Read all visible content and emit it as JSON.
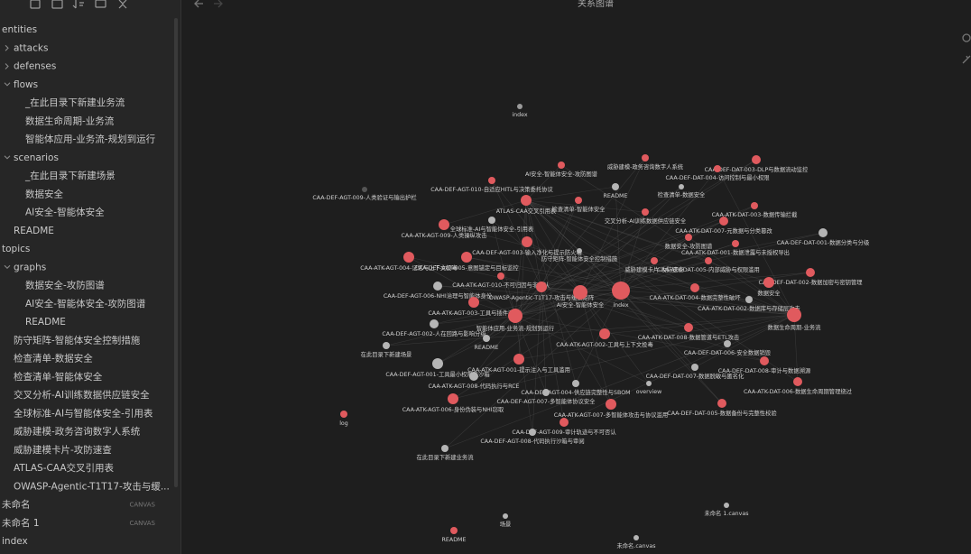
{
  "header": {
    "title": "关系图谱"
  },
  "sidebar": {
    "items": [
      {
        "label": "entities"
      },
      {
        "label": "attacks"
      },
      {
        "label": "defenses"
      },
      {
        "label": "flows"
      },
      {
        "label": "_在此目录下新建业务流"
      },
      {
        "label": "数据生命周期-业务流"
      },
      {
        "label": "智能体应用-业务流-规划到运行"
      },
      {
        "label": "scenarios"
      },
      {
        "label": "_在此目录下新建场景"
      },
      {
        "label": "数据安全"
      },
      {
        "label": "AI安全-智能体安全"
      },
      {
        "label": "README"
      },
      {
        "label": "topics"
      },
      {
        "label": "graphs"
      },
      {
        "label": "数据安全-攻防图谱"
      },
      {
        "label": "AI安全-智能体安全-攻防图谱"
      },
      {
        "label": "README"
      },
      {
        "label": "防守矩阵-智能体安全控制措施"
      },
      {
        "label": "检查清单-数据安全"
      },
      {
        "label": "检查清单-智能体安全"
      },
      {
        "label": "交叉分析-AI训练数据供应链安全"
      },
      {
        "label": "全球标准-AI与智能体安全-引用表"
      },
      {
        "label": "威胁建模-政务咨询数字人系统"
      },
      {
        "label": "威胁建模卡片-攻防速查"
      },
      {
        "label": "ATLAS-CAA交叉引用表"
      },
      {
        "label": "OWASP-Agentic-T1T17-攻击与缓..."
      },
      {
        "label": "未命名",
        "badge": "CANVAS"
      },
      {
        "label": "未命名 1",
        "badge": "CANVAS"
      },
      {
        "label": "index"
      }
    ]
  },
  "graph": {
    "nodes": [
      {
        "label": "index",
        "color": "#9a9a9a"
      },
      {
        "label": "威胁建模-政务咨询数字人系统",
        "color": "#e05a5e"
      },
      {
        "label": "AI安全-智能体安全-攻防图谱",
        "color": "#e05a5e"
      },
      {
        "label": "CAA-DEF-DAT-003-DLP与数据流动监控",
        "color": "#e05a5e"
      },
      {
        "label": "CAA-DEF-DAT-004-访问控制与最小权限",
        "color": "#e05a5e"
      },
      {
        "label": "CAA-DEF-AGT-010-自适应HITL与决策委托协议",
        "color": "#e05a5e"
      },
      {
        "label": "README",
        "color": "#b5b5b5"
      },
      {
        "label": "检查清单-数据安全",
        "color": "#b5b5b5"
      },
      {
        "label": "CAA-DEF-AGT-009-人类验证与输出护栏",
        "color": "#555555"
      },
      {
        "label": "检查清单-智能体安全",
        "color": "#e05a5e"
      },
      {
        "label": "ATLAS-CAA交叉引用表",
        "color": "#e05a5e"
      },
      {
        "label": "CAA-ATK-DAT-003-数据传输拦截",
        "color": "#e05a5e"
      },
      {
        "label": "交叉分析-AI训练数据供应链安全",
        "color": "#e05a5e"
      },
      {
        "label": "全球标准-AI与智能体安全-引用表",
        "color": "#b5b5b5"
      },
      {
        "label": "CAA-ATK-AGT-009-人类操纵攻击",
        "color": "#e05a5e"
      },
      {
        "label": "CAA-ATK-DAT-007-元数据与分类篡改",
        "color": "#e05a5e"
      },
      {
        "label": "数据安全-攻防图谱",
        "color": "#e05a5e"
      },
      {
        "label": "CAA-DEF-DAT-001-数据分类与分级",
        "color": "#b5b5b5"
      },
      {
        "label": "CAA-DEF-AGT-003-输入净化与提示防火墙",
        "color": "#e05a5e"
      },
      {
        "label": "CAA-ATK-DAT-001-数据泄露与未授权导出",
        "color": "#e05a5e"
      },
      {
        "label": "防守矩阵-智能体安全控制措施",
        "color": "#b5b5b5"
      },
      {
        "label": "CAA-ATK-AGT-004-记忆与上下文投毒",
        "color": "#e05a5e"
      },
      {
        "label": "CAA-DEF-AGT-005-意图锚定与目标监控",
        "color": "#e05a5e"
      },
      {
        "label": "威胁建模卡片-攻防速查",
        "color": "#e05a5e"
      },
      {
        "label": "CAA-ATK-DAT-005-内部威胁与权限滥用",
        "color": "#e05a5e"
      },
      {
        "label": "CAA-DEF-DAT-002-数据加密与密钥管理",
        "color": "#e05a5e"
      },
      {
        "label": "数据安全",
        "color": "#e05a5e"
      },
      {
        "label": "CAA-ATK-AGT-010-不可归因与非否认",
        "color": "#e05a5e"
      },
      {
        "label": "CAA-DEF-AGT-006-NHI治理与智能体身份",
        "color": "#b5b5b5"
      },
      {
        "label": "OWASP-Agentic-T1T17-攻击与缓解矩阵",
        "color": "#e05a5e"
      },
      {
        "label": "index",
        "color": "#e05a5e"
      },
      {
        "label": "AI安全-智能体安全",
        "color": "#e05a5e"
      },
      {
        "label": "CAA-ATK-DAT-004-数据完整性破坏",
        "color": "#e05a5e"
      },
      {
        "label": "CAA-ATK-AGT-003-工具与插件滥用",
        "color": "#e05a5e"
      },
      {
        "label": "CAA-ATK-DAT-002-数据库与存储层攻击",
        "color": "#b5b5b5"
      },
      {
        "label": "数据生命周期-业务流",
        "color": "#e05a5e"
      },
      {
        "label": "智能体应用-业务流-规划到运行",
        "color": "#e05a5e"
      },
      {
        "label": "CAA-DEF-AGT-002-人在回路与影响分级",
        "color": "#b5b5b5"
      },
      {
        "label": "CAA-ATK-AGT-002-工具与上下文投毒",
        "color": "#e05a5e"
      },
      {
        "label": "README",
        "color": "#b5b5b5"
      },
      {
        "label": "在此目录下新建场景",
        "color": "#b5b5b5"
      },
      {
        "label": "CAA-ATK-DAT-008-数据管道与ETL攻击",
        "color": "#e05a5e"
      },
      {
        "label": "CAA-DEF-DAT-006-安全数据销毁",
        "color": "#b5b5b5"
      },
      {
        "label": "CAA-DEF-AGT-001-工具最小权限与沙箱",
        "color": "#b5b5b5"
      },
      {
        "label": "CAA-ATK-AGT-001-提示注入与工具滥用",
        "color": "#e05a5e"
      },
      {
        "label": "CAA-DEF-DAT-008-审计与数据溯源",
        "color": "#e05a5e"
      },
      {
        "label": "CAA-DEF-DAT-007-数据脱敏与匿名化",
        "color": "#b5b5b5"
      },
      {
        "label": "CAA-ATK-AGT-008-代码执行与RCE",
        "color": "#b5b5b5"
      },
      {
        "label": "CAA-DEF-AGT-004-供应链完整性与SBOM",
        "color": "#b5b5b5"
      },
      {
        "label": "overview",
        "color": "#b5b5b5"
      },
      {
        "label": "CAA-ATK-DAT-006-数据生命周期管理绕过",
        "color": "#e05a5e"
      },
      {
        "label": "CAA-DEF-AGT-007-多智能体协议安全",
        "color": "#b5b5b5"
      },
      {
        "label": "CAA-ATK-AGT-006-身份伪装与NHI窃取",
        "color": "#e05a5e"
      },
      {
        "label": "CAA-ATK-AGT-007-多智能体攻击与协议滥用",
        "color": "#e05a5e"
      },
      {
        "label": "CAA-DEF-DAT-005-数据备份与完整性校验",
        "color": "#e05a5e"
      },
      {
        "label": "log",
        "color": "#e05a5e"
      },
      {
        "label": "CAA-DEF-AGT-009-审计轨迹与不可否认",
        "color": "#e05a5e"
      },
      {
        "label": "CAA-DEF-AGT-008-代码执行沙箱与审阅",
        "color": "#b5b5b5"
      },
      {
        "label": "在此目录下新建业务流",
        "color": "#b5b5b5"
      },
      {
        "label": "未命名 1.canvas",
        "color": "#b5b5b5"
      },
      {
        "label": "场景",
        "color": "#b5b5b5"
      },
      {
        "label": "README",
        "color": "#e05a5e"
      },
      {
        "label": "未命名.canvas",
        "color": "#b5b5b5"
      }
    ]
  }
}
